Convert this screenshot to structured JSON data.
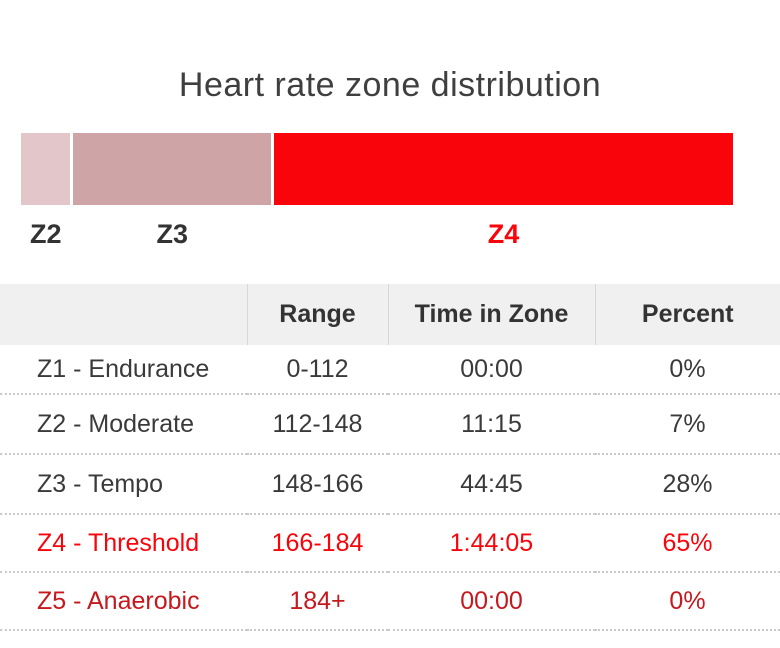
{
  "page": {
    "title": "Heart rate zone distribution"
  },
  "colors": {
    "title-text": "#3f3f3f",
    "body-text": "#3a3a3a",
    "header-text": "#333333",
    "label-text": "#333333",
    "header-bg": "#f0f0f0",
    "header-divider": "#d8d8d8",
    "dotted-divider": "#c9c9c9",
    "z2-fill": "#e3c6c9",
    "z3-fill": "#cfa4a7",
    "z4-fill": "#f9040b",
    "bright-red": "#f9040b",
    "dark-red": "#c5191e"
  },
  "chart_data": {
    "type": "bar",
    "variant": "single-stacked-horizontal",
    "title": "Heart rate zone distribution",
    "value_unit": "percent of total time",
    "segments": [
      {
        "zone": "Z2",
        "percent": 7,
        "color_key": "z2-fill",
        "label_style": "normal"
      },
      {
        "zone": "Z3",
        "percent": 28,
        "color_key": "z3-fill",
        "label_style": "normal"
      },
      {
        "zone": "Z4",
        "percent": 65,
        "color_key": "z4-fill",
        "label_style": "highlight-red"
      }
    ]
  },
  "table": {
    "headers": {
      "zone": "",
      "range": "Range",
      "time": "Time in Zone",
      "percent": "Percent"
    },
    "rows": [
      {
        "zone": "Z1 - Endurance",
        "range": "0-112",
        "time": "00:00",
        "percent": "0%",
        "variant": "normal"
      },
      {
        "zone": "Z2 - Moderate",
        "range": "112-148",
        "time": "11:15",
        "percent": "7%",
        "variant": "normal"
      },
      {
        "zone": "Z3 - Tempo",
        "range": "148-166",
        "time": "44:45",
        "percent": "28%",
        "variant": "normal"
      },
      {
        "zone": "Z4 - Threshold",
        "range": "166-184",
        "time": "1:44:05",
        "percent": "65%",
        "variant": "bright-red"
      },
      {
        "zone": "Z5 - Anaerobic",
        "range": "184+",
        "time": "00:00",
        "percent": "0%",
        "variant": "dark-red"
      }
    ]
  }
}
